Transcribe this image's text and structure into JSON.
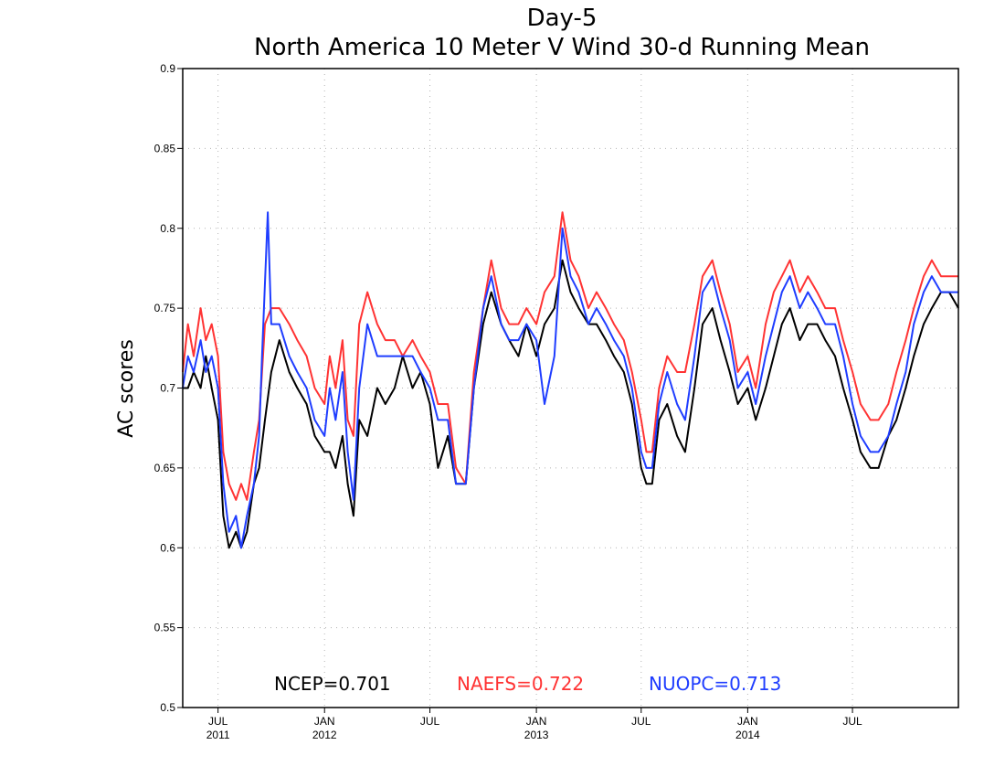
{
  "chart_data": {
    "type": "line",
    "title": "Day-5",
    "subtitle": "North America 10 Meter V Wind 30-d Running Mean",
    "ylabel": "AC scores",
    "xlabel": "",
    "ylim": [
      0.5,
      0.9
    ],
    "xlim": [
      "2011-05-01",
      "2014-12-31"
    ],
    "grid": true,
    "y_ticks": [
      "0.5",
      "0.55",
      "0.6",
      "0.65",
      "0.7",
      "0.75",
      "0.8",
      "0.85",
      "0.9"
    ],
    "x_ticks": [
      {
        "date": "2011-07-01",
        "month": "JUL",
        "year": "2011"
      },
      {
        "date": "2012-01-01",
        "month": "JAN",
        "year": "2012"
      },
      {
        "date": "2012-07-01",
        "month": "JUL",
        "year": ""
      },
      {
        "date": "2013-01-01",
        "month": "JAN",
        "year": "2013"
      },
      {
        "date": "2013-07-01",
        "month": "JUL",
        "year": ""
      },
      {
        "date": "2014-01-01",
        "month": "JAN",
        "year": "2014"
      },
      {
        "date": "2014-07-01",
        "month": "JUL",
        "year": ""
      }
    ],
    "annotations": [
      "NCEP=0.701",
      "NAEFS=0.722",
      "NUOPC=0.713"
    ],
    "series": [
      {
        "name": "NCEP",
        "color": "#000000",
        "x": [
          "2011-05-01",
          "2011-05-10",
          "2011-05-20",
          "2011-06-01",
          "2011-06-10",
          "2011-06-20",
          "2011-07-01",
          "2011-07-10",
          "2011-07-20",
          "2011-08-01",
          "2011-08-10",
          "2011-08-20",
          "2011-09-01",
          "2011-09-10",
          "2011-09-20",
          "2011-10-01",
          "2011-10-15",
          "2011-11-01",
          "2011-11-15",
          "2011-12-01",
          "2011-12-15",
          "2012-01-01",
          "2012-01-10",
          "2012-01-20",
          "2012-02-01",
          "2012-02-10",
          "2012-02-20",
          "2012-03-01",
          "2012-03-15",
          "2012-04-01",
          "2012-04-15",
          "2012-05-01",
          "2012-05-15",
          "2012-06-01",
          "2012-06-15",
          "2012-07-01",
          "2012-07-15",
          "2012-08-01",
          "2012-08-15",
          "2012-09-01",
          "2012-09-15",
          "2012-10-01",
          "2012-10-15",
          "2012-11-01",
          "2012-11-15",
          "2012-12-01",
          "2012-12-15",
          "2013-01-01",
          "2013-01-15",
          "2013-02-01",
          "2013-02-15",
          "2013-03-01",
          "2013-03-15",
          "2013-04-01",
          "2013-04-15",
          "2013-05-01",
          "2013-05-15",
          "2013-06-01",
          "2013-06-15",
          "2013-07-01",
          "2013-07-10",
          "2013-07-20",
          "2013-08-01",
          "2013-08-15",
          "2013-09-01",
          "2013-09-15",
          "2013-10-01",
          "2013-10-15",
          "2013-11-01",
          "2013-11-15",
          "2013-12-01",
          "2013-12-15",
          "2014-01-01",
          "2014-01-15",
          "2014-02-01",
          "2014-02-15",
          "2014-03-01",
          "2014-03-15",
          "2014-04-01",
          "2014-04-15",
          "2014-05-01",
          "2014-05-15",
          "2014-06-01",
          "2014-06-15",
          "2014-07-01",
          "2014-07-15",
          "2014-08-01",
          "2014-08-15",
          "2014-09-01",
          "2014-09-15",
          "2014-10-01",
          "2014-10-15",
          "2014-11-01",
          "2014-11-15",
          "2014-12-01",
          "2014-12-15",
          "2014-12-31"
        ],
        "values": [
          0.7,
          0.7,
          0.71,
          0.7,
          0.72,
          0.7,
          0.68,
          0.62,
          0.6,
          0.61,
          0.6,
          0.61,
          0.64,
          0.65,
          0.68,
          0.71,
          0.73,
          0.71,
          0.7,
          0.69,
          0.67,
          0.66,
          0.66,
          0.65,
          0.67,
          0.64,
          0.62,
          0.68,
          0.67,
          0.7,
          0.69,
          0.7,
          0.72,
          0.7,
          0.71,
          0.69,
          0.65,
          0.67,
          0.64,
          0.64,
          0.7,
          0.74,
          0.76,
          0.74,
          0.73,
          0.72,
          0.74,
          0.72,
          0.74,
          0.75,
          0.78,
          0.76,
          0.75,
          0.74,
          0.74,
          0.73,
          0.72,
          0.71,
          0.69,
          0.65,
          0.64,
          0.64,
          0.68,
          0.69,
          0.67,
          0.66,
          0.7,
          0.74,
          0.75,
          0.73,
          0.71,
          0.69,
          0.7,
          0.68,
          0.7,
          0.72,
          0.74,
          0.75,
          0.73,
          0.74,
          0.74,
          0.73,
          0.72,
          0.7,
          0.68,
          0.66,
          0.65,
          0.65,
          0.67,
          0.68,
          0.7,
          0.72,
          0.74,
          0.75,
          0.76,
          0.76,
          0.75
        ]
      },
      {
        "name": "NAEFS",
        "color": "#ff3333",
        "x": [
          "2011-05-01",
          "2011-05-10",
          "2011-05-20",
          "2011-06-01",
          "2011-06-10",
          "2011-06-20",
          "2011-07-01",
          "2011-07-10",
          "2011-07-20",
          "2011-08-01",
          "2011-08-10",
          "2011-08-20",
          "2011-09-01",
          "2011-09-10",
          "2011-09-20",
          "2011-10-01",
          "2011-10-15",
          "2011-11-01",
          "2011-11-15",
          "2011-12-01",
          "2011-12-15",
          "2012-01-01",
          "2012-01-10",
          "2012-01-20",
          "2012-02-01",
          "2012-02-10",
          "2012-02-20",
          "2012-03-01",
          "2012-03-15",
          "2012-04-01",
          "2012-04-15",
          "2012-05-01",
          "2012-05-15",
          "2012-06-01",
          "2012-06-15",
          "2012-07-01",
          "2012-07-15",
          "2012-08-01",
          "2012-08-15",
          "2012-09-01",
          "2012-09-15",
          "2012-10-01",
          "2012-10-15",
          "2012-11-01",
          "2012-11-15",
          "2012-12-01",
          "2012-12-15",
          "2013-01-01",
          "2013-01-15",
          "2013-02-01",
          "2013-02-15",
          "2013-03-01",
          "2013-03-15",
          "2013-04-01",
          "2013-04-15",
          "2013-05-01",
          "2013-05-15",
          "2013-06-01",
          "2013-06-15",
          "2013-07-01",
          "2013-07-10",
          "2013-07-20",
          "2013-08-01",
          "2013-08-15",
          "2013-09-01",
          "2013-09-15",
          "2013-10-01",
          "2013-10-15",
          "2013-11-01",
          "2013-11-15",
          "2013-12-01",
          "2013-12-15",
          "2014-01-01",
          "2014-01-15",
          "2014-02-01",
          "2014-02-15",
          "2014-03-01",
          "2014-03-15",
          "2014-04-01",
          "2014-04-15",
          "2014-05-01",
          "2014-05-15",
          "2014-06-01",
          "2014-06-15",
          "2014-07-01",
          "2014-07-15",
          "2014-08-01",
          "2014-08-15",
          "2014-09-01",
          "2014-09-15",
          "2014-10-01",
          "2014-10-15",
          "2014-11-01",
          "2014-11-15",
          "2014-12-01",
          "2014-12-15",
          "2014-12-31"
        ],
        "values": [
          0.71,
          0.74,
          0.72,
          0.75,
          0.73,
          0.74,
          0.72,
          0.66,
          0.64,
          0.63,
          0.64,
          0.63,
          0.66,
          0.68,
          0.74,
          0.75,
          0.75,
          0.74,
          0.73,
          0.72,
          0.7,
          0.69,
          0.72,
          0.7,
          0.73,
          0.68,
          0.67,
          0.74,
          0.76,
          0.74,
          0.73,
          0.73,
          0.72,
          0.73,
          0.72,
          0.71,
          0.69,
          0.69,
          0.65,
          0.64,
          0.71,
          0.75,
          0.78,
          0.75,
          0.74,
          0.74,
          0.75,
          0.74,
          0.76,
          0.77,
          0.81,
          0.78,
          0.77,
          0.75,
          0.76,
          0.75,
          0.74,
          0.73,
          0.71,
          0.68,
          0.66,
          0.66,
          0.7,
          0.72,
          0.71,
          0.71,
          0.74,
          0.77,
          0.78,
          0.76,
          0.74,
          0.71,
          0.72,
          0.7,
          0.74,
          0.76,
          0.77,
          0.78,
          0.76,
          0.77,
          0.76,
          0.75,
          0.75,
          0.73,
          0.71,
          0.69,
          0.68,
          0.68,
          0.69,
          0.71,
          0.73,
          0.75,
          0.77,
          0.78,
          0.77,
          0.77,
          0.77
        ]
      },
      {
        "name": "NUOPC",
        "color": "#1f3dff",
        "x": [
          "2011-05-01",
          "2011-05-10",
          "2011-05-20",
          "2011-06-01",
          "2011-06-10",
          "2011-06-20",
          "2011-07-01",
          "2011-07-10",
          "2011-07-20",
          "2011-08-01",
          "2011-08-10",
          "2011-08-20",
          "2011-09-01",
          "2011-09-10",
          "2011-09-15",
          "2011-09-25",
          "2011-10-01",
          "2011-10-15",
          "2011-11-01",
          "2011-11-15",
          "2011-12-01",
          "2011-12-15",
          "2012-01-01",
          "2012-01-10",
          "2012-01-20",
          "2012-02-01",
          "2012-02-10",
          "2012-02-20",
          "2012-03-01",
          "2012-03-15",
          "2012-04-01",
          "2012-04-15",
          "2012-05-01",
          "2012-05-15",
          "2012-06-01",
          "2012-06-15",
          "2012-07-01",
          "2012-07-15",
          "2012-08-01",
          "2012-08-15",
          "2012-09-01",
          "2012-09-15",
          "2012-10-01",
          "2012-10-15",
          "2012-11-01",
          "2012-11-15",
          "2012-12-01",
          "2012-12-15",
          "2013-01-01",
          "2013-01-15",
          "2013-02-01",
          "2013-02-15",
          "2013-03-01",
          "2013-03-15",
          "2013-04-01",
          "2013-04-15",
          "2013-05-01",
          "2013-05-15",
          "2013-06-01",
          "2013-06-15",
          "2013-07-01",
          "2013-07-10",
          "2013-07-20",
          "2013-08-01",
          "2013-08-15",
          "2013-09-01",
          "2013-09-15",
          "2013-10-01",
          "2013-10-15",
          "2013-11-01",
          "2013-11-15",
          "2013-12-01",
          "2013-12-15",
          "2014-01-01",
          "2014-01-15",
          "2014-02-01",
          "2014-02-15",
          "2014-03-01",
          "2014-03-15",
          "2014-04-01",
          "2014-04-15",
          "2014-05-01",
          "2014-05-15",
          "2014-06-01",
          "2014-06-15",
          "2014-07-01",
          "2014-07-15",
          "2014-08-01",
          "2014-08-15",
          "2014-09-01",
          "2014-09-15",
          "2014-10-01",
          "2014-10-15",
          "2014-11-01",
          "2014-11-15",
          "2014-12-01",
          "2014-12-15",
          "2014-12-31"
        ],
        "values": [
          0.7,
          0.72,
          0.71,
          0.73,
          0.71,
          0.72,
          0.7,
          0.64,
          0.61,
          0.62,
          0.6,
          0.62,
          0.64,
          0.67,
          0.72,
          0.81,
          0.74,
          0.74,
          0.72,
          0.71,
          0.7,
          0.68,
          0.67,
          0.7,
          0.68,
          0.71,
          0.66,
          0.63,
          0.7,
          0.74,
          0.72,
          0.72,
          0.72,
          0.72,
          0.72,
          0.71,
          0.7,
          0.68,
          0.68,
          0.64,
          0.64,
          0.7,
          0.75,
          0.77,
          0.74,
          0.73,
          0.73,
          0.74,
          0.73,
          0.69,
          0.72,
          0.8,
          0.77,
          0.76,
          0.74,
          0.75,
          0.74,
          0.73,
          0.72,
          0.7,
          0.66,
          0.65,
          0.65,
          0.69,
          0.71,
          0.69,
          0.68,
          0.72,
          0.76,
          0.77,
          0.75,
          0.73,
          0.7,
          0.71,
          0.69,
          0.72,
          0.74,
          0.76,
          0.77,
          0.75,
          0.76,
          0.75,
          0.74,
          0.74,
          0.72,
          0.69,
          0.67,
          0.66,
          0.66,
          0.67,
          0.69,
          0.71,
          0.74,
          0.76,
          0.77,
          0.76,
          0.76,
          0.76
        ]
      }
    ]
  }
}
